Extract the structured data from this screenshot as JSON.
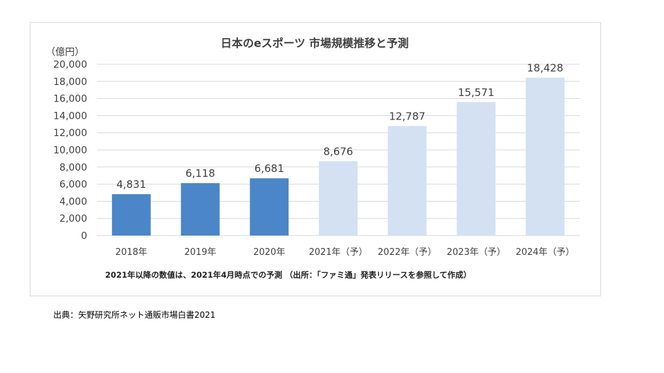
{
  "chart_data": {
    "type": "bar",
    "title": "日本のeスポーツ 市場規模推移と予測",
    "ylabel": "（億円）",
    "ylim": [
      0,
      20000
    ],
    "yticks": [
      "0",
      "2,000",
      "4,000",
      "6,000",
      "8,000",
      "10,000",
      "12,000",
      "14,000",
      "16,000",
      "18,000",
      "20,000"
    ],
    "categories": [
      "2018年",
      "2019年",
      "2020年",
      "2021年（予）",
      "2022年（予）",
      "2023年（予）",
      "2024年（予）"
    ],
    "values": [
      4831,
      6118,
      6681,
      8676,
      12787,
      15571,
      18428
    ],
    "value_labels": [
      "4,831",
      "6,118",
      "6,681",
      "8,676",
      "12,787",
      "15,571",
      "18,428"
    ],
    "forecast": [
      false,
      false,
      false,
      true,
      true,
      true,
      true
    ],
    "colors": {
      "actual": "#4a86c8",
      "forecast": "#d3e1f3",
      "grid": "#d9d9d9"
    },
    "note": "2021年以降の数値は、2021年4月時点での予測 （出所：「ファミ通」発表リリースを参照して作成）",
    "grid": true,
    "legend": "none"
  },
  "source_caption": "出典：矢野研究所ネット通販市場白書2021"
}
